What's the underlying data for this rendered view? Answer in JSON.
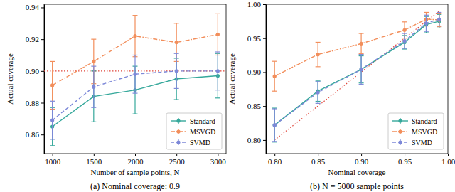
{
  "chart_data": [
    {
      "type": "line",
      "caption": "(a) Nominal coverage: 0.9",
      "x_label": "Number of sample points, N",
      "y_label": "Actual coverage",
      "x": [
        1000,
        1500,
        2000,
        2500,
        3000
      ],
      "xlim": [
        900,
        3100
      ],
      "xticks": [
        1000,
        1500,
        2000,
        2500,
        3000
      ],
      "ylim": [
        0.848,
        0.942
      ],
      "yticks": [
        0.86,
        0.88,
        {
          "value": 0.9,
          "label": "0.90"
        },
        0.92,
        0.94
      ],
      "grid": false,
      "legend": "lower right",
      "reference_line": {
        "x": [
          900,
          3100
        ],
        "y": [
          0.9,
          0.9
        ],
        "color": "#e0453a",
        "line_style": "dotted"
      },
      "series": [
        {
          "name": "Standard",
          "color": "#35a89b",
          "marker": "circle",
          "line_style": "solid",
          "values": [
            0.865,
            0.884,
            0.888,
            0.895,
            0.897
          ],
          "errors": [
            0.012,
            0.016,
            0.015,
            0.013,
            0.014
          ]
        },
        {
          "name": "MSVGD",
          "color": "#f28e5b",
          "marker": "circle",
          "line_style": "dashdot",
          "values": [
            0.891,
            0.906,
            0.922,
            0.918,
            0.923
          ],
          "errors": [
            0.015,
            0.014,
            0.013,
            0.012,
            0.013
          ]
        },
        {
          "name": "SVMD",
          "color": "#7d88d8",
          "marker": "circle",
          "line_style": "dashed",
          "values": [
            0.869,
            0.89,
            0.898,
            0.9,
            0.9
          ],
          "errors": [
            0.012,
            0.013,
            0.012,
            0.011,
            0.012
          ]
        }
      ]
    },
    {
      "type": "line",
      "caption": "(b) N = 5000 sample points",
      "x_label": "Nominal coverage",
      "y_label": "Actual coverage",
      "x": [
        0.8,
        0.85,
        0.9,
        0.95,
        0.975,
        0.99
      ],
      "xlim": [
        0.79,
        1.0
      ],
      "xticks": [
        {
          "value": 0.8,
          "label": "0.80"
        },
        0.85,
        {
          "value": 0.9,
          "label": "0.90"
        },
        0.95,
        {
          "value": 1,
          "label": "1.00"
        }
      ],
      "ylim": [
        0.78,
        1.0
      ],
      "yticks": [
        {
          "value": 0.8,
          "label": "0.80"
        },
        0.85,
        {
          "value": 0.9,
          "label": "0.90"
        },
        0.95,
        {
          "value": 1,
          "label": "1.00"
        }
      ],
      "grid": false,
      "legend": "lower right",
      "reference_line": {
        "x": [
          0.8,
          0.99
        ],
        "y": [
          0.8,
          0.99
        ],
        "color": "#e0453a",
        "line_style": "dotted"
      },
      "series": [
        {
          "name": "Standard",
          "color": "#35a89b",
          "marker": "circle",
          "line_style": "solid",
          "values": [
            0.822,
            0.872,
            0.904,
            0.944,
            0.97,
            0.975
          ],
          "errors": [
            0.025,
            0.015,
            0.02,
            0.01,
            0.012,
            0.01
          ]
        },
        {
          "name": "MSVGD",
          "color": "#f28e5b",
          "marker": "circle",
          "line_style": "dashdot",
          "values": [
            0.894,
            0.926,
            0.942,
            0.962,
            0.978,
            0.977
          ],
          "errors": [
            0.022,
            0.018,
            0.015,
            0.012,
            0.01,
            0.01
          ]
        },
        {
          "name": "SVMD",
          "color": "#7d88d8",
          "marker": "circle",
          "line_style": "dashed",
          "values": [
            0.822,
            0.87,
            0.904,
            0.946,
            0.972,
            0.978
          ],
          "errors": [
            0.024,
            0.016,
            0.022,
            0.011,
            0.012,
            0.01
          ]
        }
      ]
    }
  ]
}
